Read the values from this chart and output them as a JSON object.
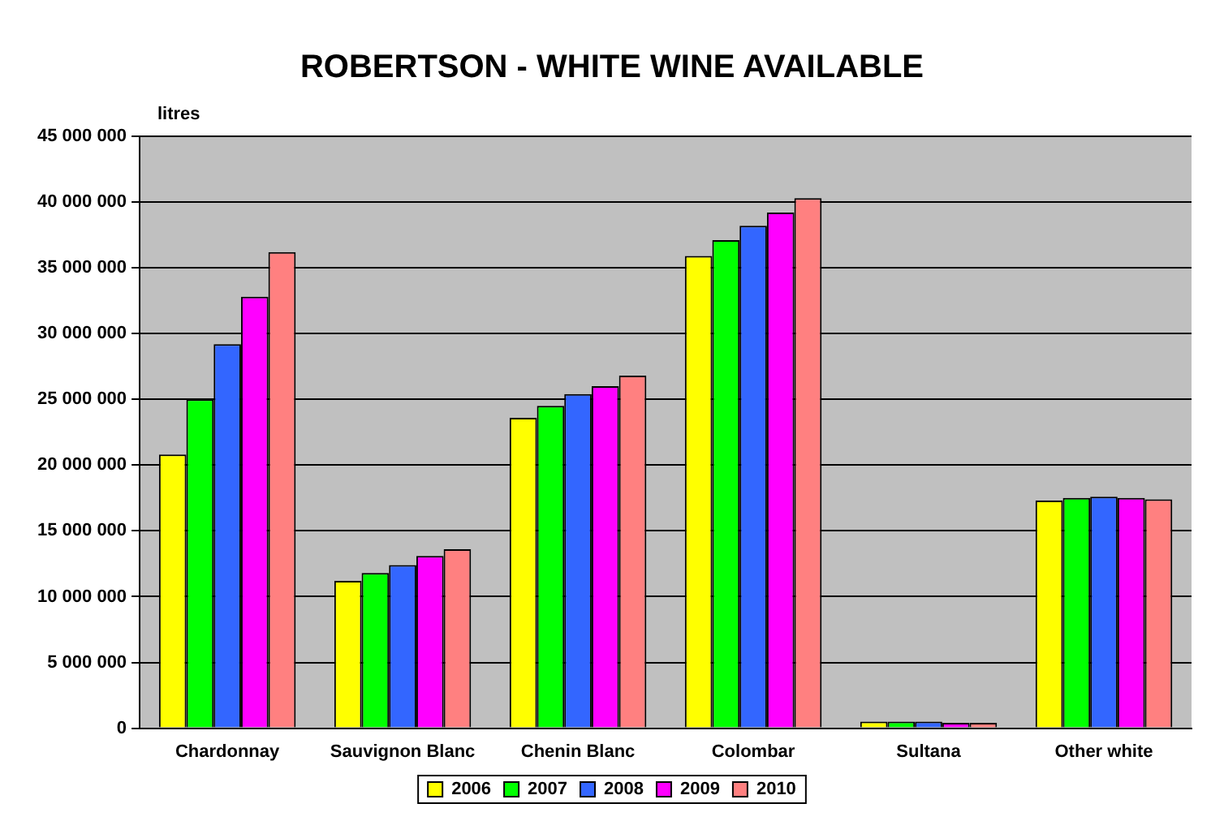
{
  "chart_data": {
    "type": "bar",
    "title": "ROBERTSON - WHITE WINE AVAILABLE",
    "ylabel": "litres",
    "categories": [
      "Chardonnay",
      "Sauvignon Blanc",
      "Chenin Blanc",
      "Colombar",
      "Sultana",
      "Other white"
    ],
    "series": [
      {
        "name": "2006",
        "color": "#ffff00",
        "values": [
          20800000,
          11200000,
          23600000,
          35900000,
          500000,
          17300000
        ]
      },
      {
        "name": "2007",
        "color": "#00ff00",
        "values": [
          25000000,
          11800000,
          24500000,
          37100000,
          500000,
          17500000
        ]
      },
      {
        "name": "2008",
        "color": "#3366ff",
        "values": [
          29200000,
          12400000,
          25400000,
          38200000,
          500000,
          17600000
        ]
      },
      {
        "name": "2009",
        "color": "#ff00ff",
        "values": [
          32800000,
          13100000,
          26000000,
          39200000,
          400000,
          17500000
        ]
      },
      {
        "name": "2010",
        "color": "#ff8080",
        "values": [
          36200000,
          13600000,
          26800000,
          40300000,
          400000,
          17400000
        ]
      }
    ],
    "ylim": [
      0,
      45000000
    ],
    "yticks": [
      {
        "value": 0,
        "label": "0"
      },
      {
        "value": 5000000,
        "label": "5 000 000"
      },
      {
        "value": 10000000,
        "label": "10 000 000"
      },
      {
        "value": 15000000,
        "label": "15 000 000"
      },
      {
        "value": 20000000,
        "label": "20 000 000"
      },
      {
        "value": 25000000,
        "label": "25 000 000"
      },
      {
        "value": 30000000,
        "label": "30 000 000"
      },
      {
        "value": 35000000,
        "label": "35 000 000"
      },
      {
        "value": 40000000,
        "label": "40 000 000"
      },
      {
        "value": 45000000,
        "label": "45 000 000"
      }
    ],
    "grid": "y",
    "legend": "bottom"
  }
}
